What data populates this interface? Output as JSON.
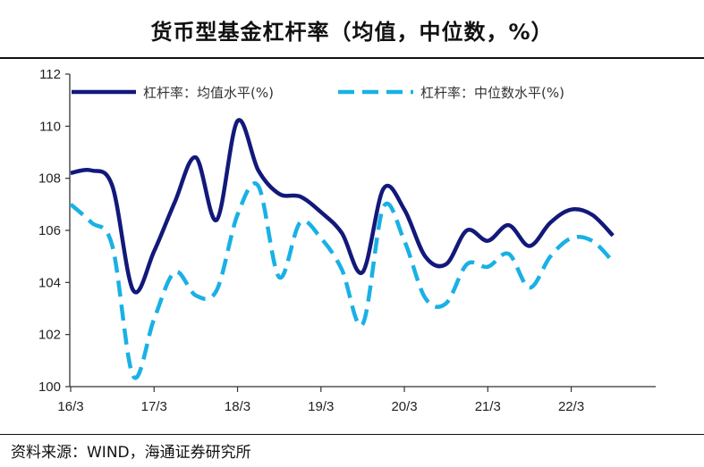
{
  "chart_data": {
    "type": "line",
    "title": "货币型基金杠杆率（均值，中位数，%）",
    "xlabel": "",
    "ylabel": "",
    "ylim": [
      100,
      112
    ],
    "yticks": [
      "100",
      "102",
      "104",
      "106",
      "108",
      "110",
      "112"
    ],
    "xticks": [
      "16/3",
      "17/3",
      "18/3",
      "19/3",
      "20/3",
      "21/3",
      "22/3"
    ],
    "x_range": [
      2016.0,
      2022.5
    ],
    "series": [
      {
        "name": "杠杆率：均值水平(%)",
        "color": "#12197a",
        "style": "solid",
        "x": [
          2016.0,
          2016.25,
          2016.5,
          2016.75,
          2017.0,
          2017.25,
          2017.5,
          2017.75,
          2018.0,
          2018.25,
          2018.5,
          2018.75,
          2019.0,
          2019.25,
          2019.5,
          2019.75,
          2020.0,
          2020.25,
          2020.5,
          2020.75,
          2021.0,
          2021.25,
          2021.5,
          2021.75,
          2022.0,
          2022.25,
          2022.5
        ],
        "values": [
          108.2,
          108.3,
          107.7,
          103.7,
          105.2,
          107.1,
          108.8,
          106.4,
          110.2,
          108.3,
          107.4,
          107.3,
          106.7,
          105.9,
          104.4,
          107.6,
          106.8,
          105.0,
          104.7,
          106.0,
          105.6,
          106.2,
          105.4,
          106.3,
          106.8,
          106.6,
          105.8
        ]
      },
      {
        "name": "杠杆率：中位数水平(%)",
        "color": "#19b1e5",
        "style": "dashed",
        "x": [
          2016.0,
          2016.25,
          2016.5,
          2016.75,
          2017.0,
          2017.25,
          2017.5,
          2017.75,
          2018.0,
          2018.25,
          2018.5,
          2018.75,
          2019.0,
          2019.25,
          2019.5,
          2019.75,
          2020.0,
          2020.25,
          2020.5,
          2020.75,
          2021.0,
          2021.25,
          2021.5,
          2021.75,
          2022.0,
          2022.25,
          2022.5
        ],
        "values": [
          107.0,
          106.3,
          105.4,
          100.4,
          102.6,
          104.4,
          103.5,
          103.7,
          106.6,
          107.7,
          104.2,
          106.3,
          105.7,
          104.5,
          102.4,
          106.9,
          105.6,
          103.4,
          103.2,
          104.7,
          104.6,
          105.1,
          103.8,
          105.0,
          105.7,
          105.6,
          104.8
        ]
      }
    ],
    "legend_position": "top"
  },
  "source_text": "资料来源：WIND，海通证券研究所"
}
